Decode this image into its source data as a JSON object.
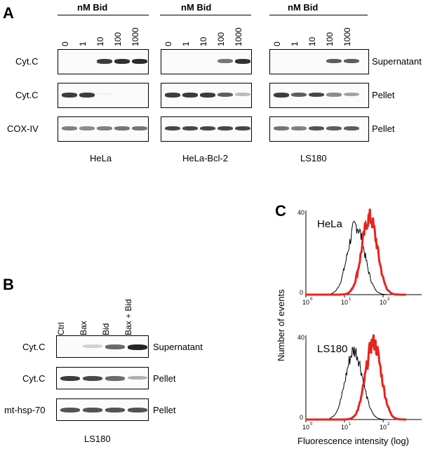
{
  "panelA": {
    "letter": "A",
    "group_header": "nM Bid",
    "concentrations": [
      "0",
      "1",
      "10",
      "100",
      "1000"
    ],
    "row_labels": [
      "Cyt.C",
      "Cyt.C",
      "COX-IV"
    ],
    "fraction_labels": [
      "Supernatant",
      "Pellet",
      "Pellet"
    ],
    "cell_lines": [
      "HeLa",
      "HeLa-Bcl-2",
      "LS180"
    ]
  },
  "panelB": {
    "letter": "B",
    "lanes": [
      "Ctrl",
      "Bax",
      "Bid",
      "Bax + Bid"
    ],
    "row_labels": [
      "Cyt.C",
      "Cyt.C",
      "mt-hsp-70"
    ],
    "fraction_labels": [
      "Supernatant",
      "Pellet",
      "Pellet"
    ],
    "cell_line": "LS180"
  },
  "panelC": {
    "letter": "C",
    "ylabel": "Number of events",
    "xlabel": "Fluorescence intensity (log)",
    "ymax": "40",
    "ymin": "0",
    "xticks": [
      "10",
      "10",
      "10"
    ],
    "xexp": [
      "0",
      "1",
      "2"
    ],
    "plots": [
      {
        "title": "HeLa",
        "black_peak_log": 1.3,
        "red_peak_log": 1.65
      },
      {
        "title": "LS180",
        "black_peak_log": 1.25,
        "red_peak_log": 1.75
      }
    ],
    "colors": {
      "control": "#000000",
      "treated": "#e8231e"
    }
  }
}
